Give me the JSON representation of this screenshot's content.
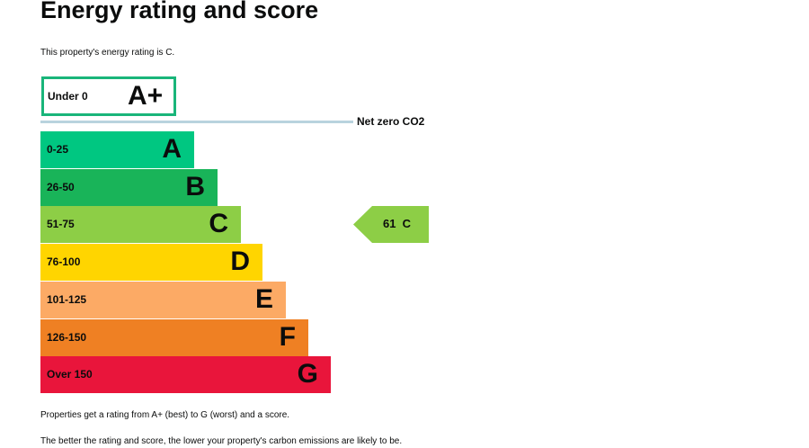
{
  "title": "Energy rating and score",
  "intro": "This property's energy rating is C.",
  "net_zero_label": "Net zero CO2",
  "chart_data": {
    "type": "bar",
    "title": "Energy rating and score",
    "bands": [
      {
        "range": "Under 0",
        "letter": "A+",
        "color": "#19b57a",
        "style": "outline"
      },
      {
        "range": "0-25",
        "letter": "A",
        "color": "#00c781"
      },
      {
        "range": "26-50",
        "letter": "B",
        "color": "#19b459"
      },
      {
        "range": "51-75",
        "letter": "C",
        "color": "#8dce46"
      },
      {
        "range": "76-100",
        "letter": "D",
        "color": "#ffd500"
      },
      {
        "range": "101-125",
        "letter": "E",
        "color": "#fcaa65"
      },
      {
        "range": "126-150",
        "letter": "F",
        "color": "#ef8023"
      },
      {
        "range": "Over 150",
        "letter": "G",
        "color": "#e9153b"
      }
    ],
    "current": {
      "score": 61,
      "letter": "C",
      "label": "61  C",
      "color": "#8dce46"
    }
  },
  "footer": [
    "Properties get a rating from A+ (best) to G (worst) and a score.",
    "The better the rating and score, the lower your property's carbon emissions are likely to be."
  ]
}
